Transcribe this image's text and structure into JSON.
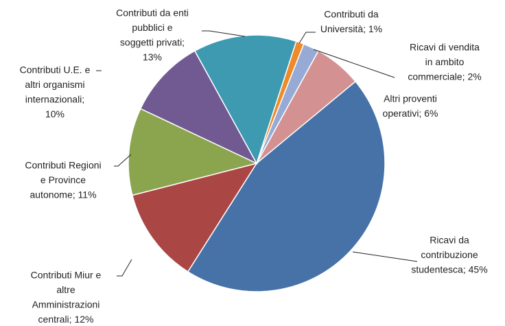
{
  "chart_data": {
    "type": "pie",
    "values": [
      1,
      2,
      6,
      45,
      12,
      11,
      10,
      13
    ],
    "value_labels": [
      [
        "Contributi da",
        "Università; 1%"
      ],
      [
        "Ricavi di vendita",
        "in ambito",
        "commerciale; 2%"
      ],
      [
        "Altri proventi",
        "operativi; 6%"
      ],
      [
        "Ricavi da",
        "contribuzione",
        "studentesca; 45%"
      ],
      [
        "Contributi Miur e",
        "altre",
        "Amministrazioni",
        "centrali; 12%"
      ],
      [
        "Contributi Regioni",
        "e Province",
        "autonome; 11%"
      ],
      [
        "Contributi U.E. e",
        "altri organismi",
        "internazionali;",
        "10%"
      ],
      [
        "Contributi da enti",
        "pubblici e",
        "soggetti privati;",
        "13%"
      ]
    ],
    "colors": [
      "#ee8a2a",
      "#97aad6",
      "#d39191",
      "#4672a8",
      "#aa4644",
      "#8aa54e",
      "#715a92",
      "#3d9ab0"
    ]
  }
}
